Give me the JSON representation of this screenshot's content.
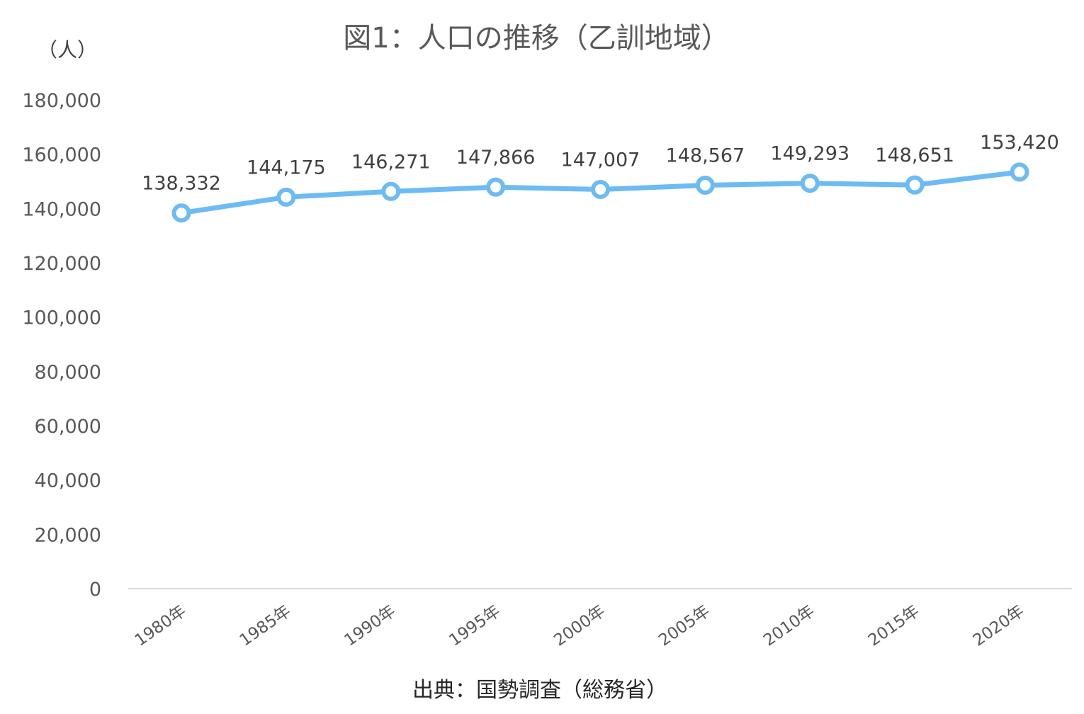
{
  "chart_data": {
    "type": "line",
    "title": "図1：人口の推移（乙訓地域）",
    "unit_label": "（人）",
    "source": "出典：国勢調査（総務省）",
    "xlabel": "",
    "ylabel": "",
    "categories": [
      "1980年",
      "1985年",
      "1990年",
      "1995年",
      "2000年",
      "2005年",
      "2010年",
      "2015年",
      "2020年"
    ],
    "series": [
      {
        "values": [
          138332,
          144175,
          146271,
          147866,
          147007,
          148567,
          149293,
          148651,
          153420
        ]
      }
    ],
    "data_labels": [
      "138,332",
      "144,175",
      "146,271",
      "147,866",
      "147,007",
      "148,567",
      "149,293",
      "148,651",
      "153,420"
    ],
    "ylim": [
      0,
      180000
    ],
    "yticks": [
      0,
      20000,
      40000,
      60000,
      80000,
      100000,
      120000,
      140000,
      160000,
      180000
    ],
    "ytick_labels": [
      "0",
      "20,000",
      "40,000",
      "60,000",
      "80,000",
      "100,000",
      "120,000",
      "140,000",
      "160,000",
      "180,000"
    ],
    "grid": false,
    "legend": "none",
    "colors": {
      "line": "#6DBBF5",
      "marker_fill": "#ffffff",
      "axis": "#d9d9d9"
    }
  }
}
